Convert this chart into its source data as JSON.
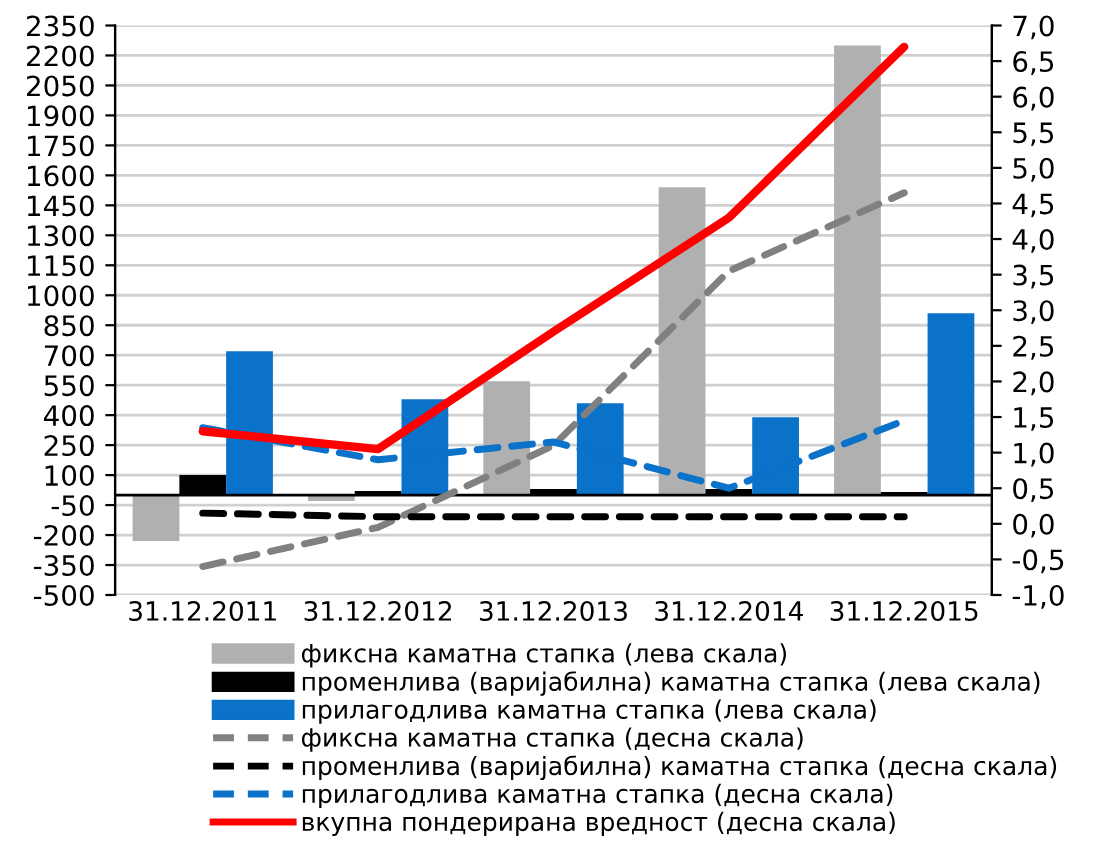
{
  "chart_data": {
    "type": "bar",
    "categories": [
      "31.12.2011",
      "31.12.2012",
      "31.12.2013",
      "31.12.2014",
      "31.12.2015"
    ],
    "series": [
      {
        "name": "фиксна каматна стапка (лева скала)",
        "color": "#b0b0b0",
        "values": [
          -230,
          -30,
          570,
          1540,
          2250
        ]
      },
      {
        "name": "променлива (варијабилна) каматна стапка (лева скала)",
        "color": "#000000",
        "values": [
          100,
          20,
          30,
          30,
          15
        ]
      },
      {
        "name": "прилагодлива каматна стапка (лева скала)",
        "color": "#0a72c8",
        "values": [
          720,
          480,
          460,
          390,
          910
        ]
      },
      {
        "name": "фиксна каматна стапка (десна скала)",
        "type": "line",
        "axis": "y2",
        "line_style": "dashed",
        "color": "#808080",
        "values": [
          -0.6,
          -0.05,
          1.1,
          3.55,
          4.65
        ]
      },
      {
        "name": "променлива (варијабилна) каматна стапка (десна скала)",
        "type": "line",
        "axis": "y2",
        "line_style": "dashed",
        "color": "#000000",
        "values": [
          0.15,
          0.1,
          0.1,
          0.1,
          0.1
        ]
      },
      {
        "name": "прилагодлива каматна стапка (десна скала)",
        "type": "line",
        "axis": "y2",
        "line_style": "dashed",
        "color": "#0a72c8",
        "values": [
          1.35,
          0.9,
          1.15,
          0.5,
          1.45
        ]
      },
      {
        "name": "вкупна пондерирана вредност (десна скала)",
        "type": "line",
        "axis": "y2",
        "line_style": "solid",
        "color": "#ff0000",
        "values": [
          1.3,
          1.05,
          2.7,
          4.3,
          6.7
        ]
      }
    ],
    "ylim": [
      -500,
      2350
    ],
    "yticks": [
      -500,
      -350,
      -200,
      -50,
      100,
      250,
      400,
      550,
      700,
      850,
      1000,
      1150,
      1300,
      1450,
      1600,
      1750,
      1900,
      2050,
      2200,
      2350
    ],
    "y2lim": [
      -1.0,
      7.0
    ],
    "y2ticks": [
      {
        "value": -1.0,
        "label": "-1,0"
      },
      {
        "value": -0.5,
        "label": "-0,5"
      },
      {
        "value": 0.0,
        "label": "0,0"
      },
      {
        "value": 0.5,
        "label": "0,5"
      },
      {
        "value": 1.0,
        "label": "1,0"
      },
      {
        "value": 1.5,
        "label": "1,5"
      },
      {
        "value": 2.0,
        "label": "2,0"
      },
      {
        "value": 2.5,
        "label": "2,5"
      },
      {
        "value": 3.0,
        "label": "3,0"
      },
      {
        "value": 3.5,
        "label": "3,5"
      },
      {
        "value": 4.0,
        "label": "4,0"
      },
      {
        "value": 4.5,
        "label": "4,5"
      },
      {
        "value": 5.0,
        "label": "5,0"
      },
      {
        "value": 5.5,
        "label": "5,5"
      },
      {
        "value": 6.0,
        "label": "6,0"
      },
      {
        "value": 6.5,
        "label": "6,5"
      },
      {
        "value": 7.0,
        "label": "7,0"
      }
    ],
    "grid": "y",
    "legend": "bottom"
  }
}
